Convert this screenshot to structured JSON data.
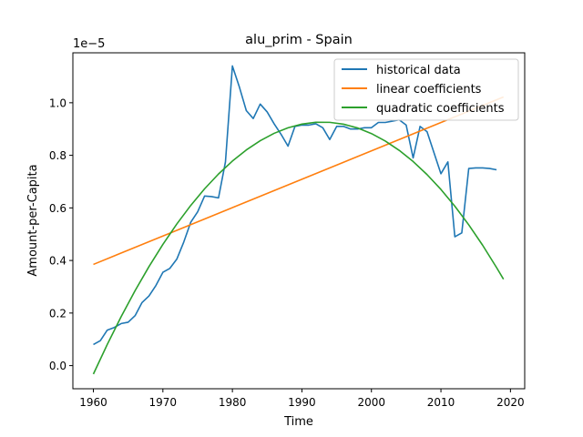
{
  "chart_data": {
    "type": "line",
    "title": "alu_prim - Spain",
    "xlabel": "Time",
    "ylabel": "Amount-per-Capita",
    "offset_label": "1e−5",
    "xlim": [
      1957.05,
      2022.05
    ],
    "ylim": [
      -0.088,
      1.19
    ],
    "x_ticks": [
      1960,
      1970,
      1980,
      1990,
      2000,
      2010,
      2020
    ],
    "y_ticks": [
      0.0,
      0.2,
      0.4,
      0.6,
      0.8,
      1.0
    ],
    "y_tick_labels": [
      "0.0",
      "0.2",
      "0.4",
      "0.6",
      "0.8",
      "1.0"
    ],
    "legend_position": "top-right",
    "grid": false,
    "series": [
      {
        "name": "historical data",
        "color": "#1f77b4",
        "x": [
          1960,
          1961,
          1962,
          1963,
          1964,
          1965,
          1966,
          1967,
          1968,
          1969,
          1970,
          1971,
          1972,
          1973,
          1974,
          1975,
          1976,
          1977,
          1978,
          1979,
          1980,
          1981,
          1982,
          1983,
          1984,
          1985,
          1986,
          1987,
          1988,
          1989,
          1990,
          1991,
          1992,
          1993,
          1994,
          1995,
          1996,
          1997,
          1998,
          1999,
          2000,
          2001,
          2002,
          2003,
          2004,
          2005,
          2006,
          2007,
          2008,
          2009,
          2010,
          2011,
          2012,
          2013,
          2014,
          2015,
          2016,
          2017,
          2018
        ],
        "y": [
          0.08,
          0.095,
          0.135,
          0.145,
          0.16,
          0.165,
          0.19,
          0.24,
          0.265,
          0.305,
          0.355,
          0.37,
          0.405,
          0.47,
          0.545,
          0.585,
          0.645,
          0.643,
          0.638,
          0.775,
          1.14,
          1.06,
          0.97,
          0.94,
          0.995,
          0.965,
          0.92,
          0.88,
          0.835,
          0.91,
          0.915,
          0.915,
          0.92,
          0.905,
          0.86,
          0.91,
          0.91,
          0.9,
          0.9,
          0.905,
          0.905,
          0.925,
          0.925,
          0.93,
          0.935,
          0.915,
          0.79,
          0.91,
          0.89,
          0.81,
          0.73,
          0.775,
          0.49,
          0.505,
          0.75,
          0.752,
          0.752,
          0.75,
          0.745
        ]
      },
      {
        "name": "linear coefficients",
        "color": "#ff7f0e",
        "x": [
          1960,
          2019
        ],
        "y": [
          0.385,
          1.022
        ]
      },
      {
        "name": "quadratic coefficients",
        "color": "#2ca02c",
        "x": [
          1960,
          1962,
          1964,
          1966,
          1968,
          1970,
          1972,
          1974,
          1976,
          1978,
          1980,
          1982,
          1984,
          1986,
          1988,
          1990,
          1992,
          1994,
          1996,
          1998,
          2000,
          2002,
          2004,
          2006,
          2008,
          2010,
          2012,
          2014,
          2016,
          2018,
          2019
        ],
        "y": [
          -0.0322,
          0.0806,
          0.1864,
          0.2851,
          0.3767,
          0.4612,
          0.5387,
          0.6092,
          0.6726,
          0.729,
          0.7782,
          0.8205,
          0.8556,
          0.8837,
          0.9048,
          0.9188,
          0.9257,
          0.9255,
          0.9183,
          0.9041,
          0.8827,
          0.8543,
          0.8189,
          0.7764,
          0.7268,
          0.6702,
          0.6065,
          0.5357,
          0.4579,
          0.3731,
          0.3286
        ]
      }
    ]
  }
}
